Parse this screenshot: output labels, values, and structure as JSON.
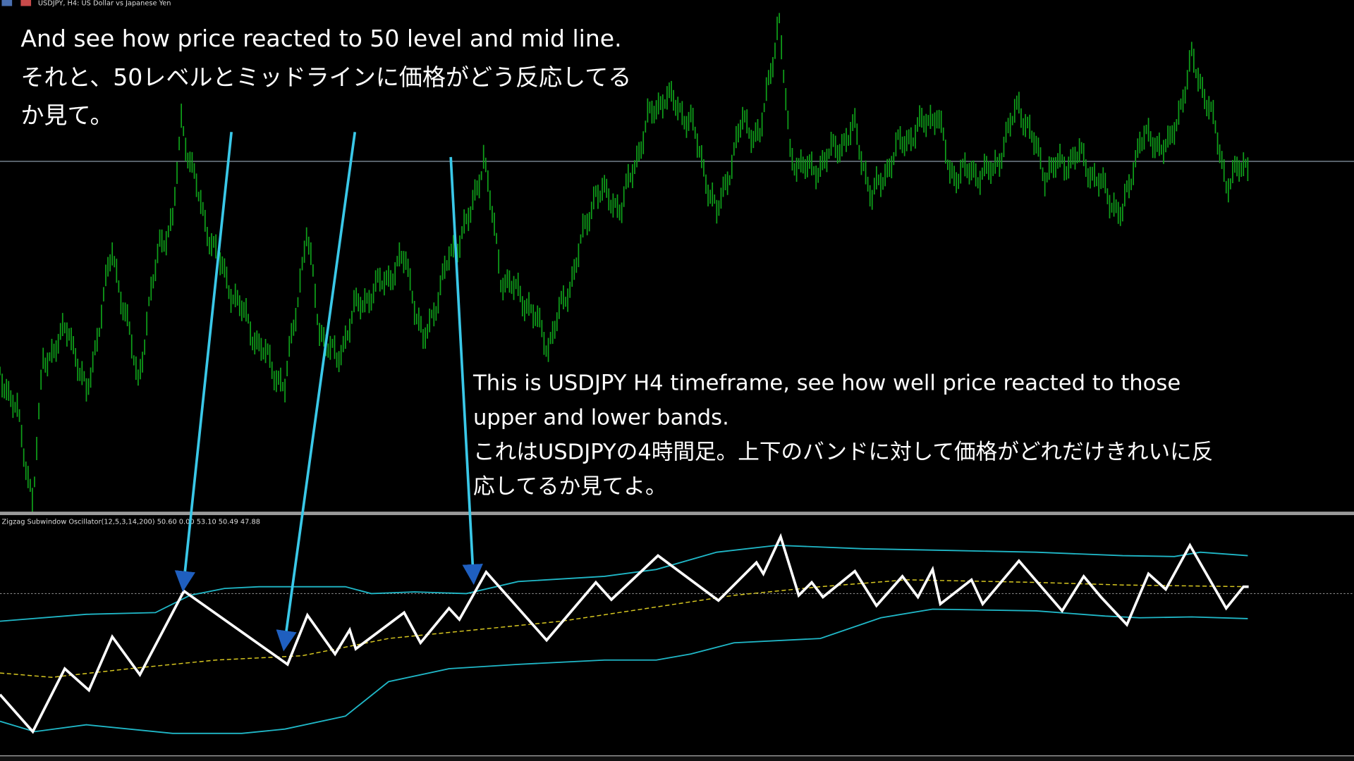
{
  "window_title": "USDJPY, H4:  US Dollar vs Japanese Yen",
  "indicator_label": "Zigzag Subwindow Oscillator(12,5,3,14,200) 50.60 0.00 53.10 50.49 47.88",
  "annotations": [
    {
      "lines": [
        "And see how price reacted to 50 level and mid line.",
        "それと、50レベルとミッドラインに価格がどう反応してる",
        "か見て。"
      ]
    },
    {
      "lines": [
        "This is USDJPY H4 timeframe, see how well price reacted to those",
        "upper and lower  bands.",
        "これはUSDJPYの4時間足。上下のバンドに対して価格がどれだけきれいに反",
        "応してるか見てよ。"
      ]
    }
  ]
}
